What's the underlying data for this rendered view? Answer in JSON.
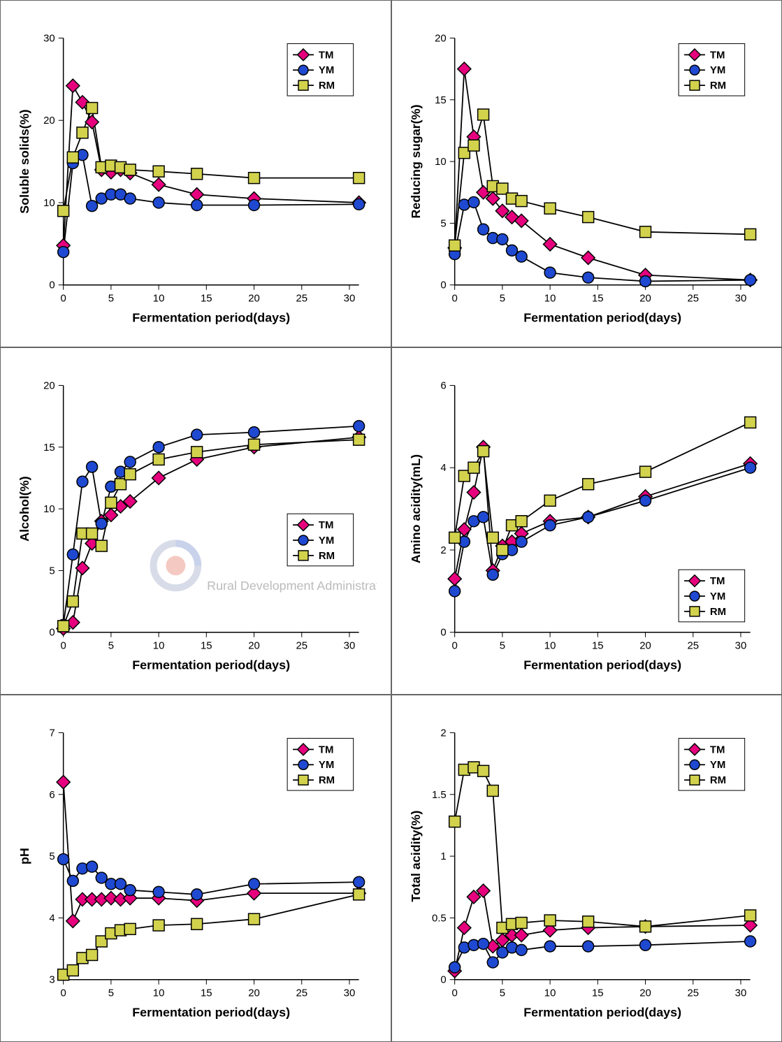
{
  "global": {
    "xlabel": "Fermentation period(days)",
    "series_names": [
      "TM",
      "YM",
      "RM"
    ],
    "legend_labels": {
      "tm": "TM",
      "ym": "YM",
      "rm": "RM"
    },
    "marker_size": 8,
    "line_width": 1.8,
    "axis_label_fontsize": 18,
    "tick_fontsize": 15,
    "markers": {
      "tm": {
        "shape": "diamond",
        "fill": "#e6007e",
        "stroke": "#000"
      },
      "ym": {
        "shape": "circle",
        "fill": "#1f49d1",
        "stroke": "#000"
      },
      "rm": {
        "shape": "square",
        "fill": "#d2d24d",
        "stroke": "#000"
      }
    },
    "legend_bg": "#ffffff",
    "legend_border": "#000000",
    "panel_border": "#666666",
    "background": "#ffffff",
    "watermark": {
      "text_en": "Rural Development Administration",
      "circle_outer": "#1f49d1",
      "circle_inner": "#e83f2b",
      "text_color": "#bbbbbb"
    }
  },
  "charts": [
    {
      "id": "soluble_solids",
      "type": "line",
      "ylabel": "Soluble solids(%)",
      "xlim": [
        0,
        31
      ],
      "xticks": [
        0,
        5,
        10,
        15,
        20,
        25,
        30
      ],
      "ylim": [
        0,
        30
      ],
      "yticks": [
        0,
        10,
        20,
        30
      ],
      "legend_pos": "top-right",
      "data": {
        "x": [
          0,
          1,
          2,
          3,
          4,
          5,
          6,
          7,
          10,
          14,
          20,
          31
        ],
        "tm": [
          4.8,
          24.2,
          22.2,
          19.8,
          14.0,
          13.7,
          14.0,
          13.6,
          12.2,
          11.0,
          10.5,
          10.0
        ],
        "ym": [
          4.0,
          14.8,
          15.8,
          9.6,
          10.5,
          11.0,
          11.0,
          10.5,
          10.0,
          9.7,
          9.7,
          9.8
        ],
        "rm": [
          9.0,
          15.5,
          18.5,
          21.5,
          14.3,
          14.5,
          14.3,
          14.0,
          13.8,
          13.5,
          13.0,
          13.0
        ]
      }
    },
    {
      "id": "reducing_sugar",
      "type": "line",
      "ylabel": "Reducing sugar(%)",
      "xlim": [
        0,
        31
      ],
      "xticks": [
        0,
        5,
        10,
        15,
        20,
        25,
        30
      ],
      "ylim": [
        0,
        20
      ],
      "yticks": [
        0,
        5,
        10,
        15,
        20
      ],
      "legend_pos": "top-right",
      "data": {
        "x": [
          0,
          1,
          2,
          3,
          4,
          5,
          6,
          7,
          10,
          14,
          20,
          31
        ],
        "tm": [
          3.0,
          17.5,
          12.0,
          7.5,
          7.0,
          6.0,
          5.5,
          5.2,
          3.3,
          2.2,
          0.8,
          0.4
        ],
        "ym": [
          2.5,
          6.5,
          6.7,
          4.5,
          3.8,
          3.7,
          2.8,
          2.3,
          1.0,
          0.6,
          0.3,
          0.4
        ],
        "rm": [
          3.2,
          10.7,
          11.3,
          13.8,
          8.0,
          7.8,
          7.0,
          6.8,
          6.2,
          5.5,
          4.3,
          4.1
        ]
      }
    },
    {
      "id": "alcohol",
      "type": "line",
      "ylabel": "Alcohol(%)",
      "xlim": [
        0,
        31
      ],
      "xticks": [
        0,
        5,
        10,
        15,
        20,
        25,
        30
      ],
      "ylim": [
        0,
        20
      ],
      "yticks": [
        0,
        5,
        10,
        15,
        20
      ],
      "legend_pos": "mid-right",
      "watermark": true,
      "data": {
        "x": [
          0,
          1,
          2,
          3,
          4,
          5,
          6,
          7,
          10,
          14,
          20,
          31
        ],
        "tm": [
          0.3,
          0.8,
          5.2,
          7.2,
          9.0,
          9.5,
          10.2,
          10.6,
          12.5,
          14.0,
          15.0,
          15.8
        ],
        "ym": [
          0.6,
          6.3,
          12.2,
          13.4,
          8.8,
          11.8,
          13.0,
          13.8,
          15.0,
          16.0,
          16.2,
          16.7
        ],
        "rm": [
          0.5,
          2.5,
          8.0,
          8.0,
          7.0,
          10.5,
          12.0,
          12.8,
          14.0,
          14.6,
          15.2,
          15.6
        ]
      }
    },
    {
      "id": "amino_acidity",
      "type": "line",
      "ylabel": "Amino acidity(mL)",
      "xlim": [
        0,
        31
      ],
      "xticks": [
        0,
        5,
        10,
        15,
        20,
        25,
        30
      ],
      "ylim": [
        0,
        6
      ],
      "yticks": [
        0,
        2,
        4,
        6
      ],
      "legend_pos": "bottom-right",
      "data": {
        "x": [
          0,
          1,
          2,
          3,
          4,
          5,
          6,
          7,
          10,
          14,
          20,
          31
        ],
        "tm": [
          1.3,
          2.5,
          3.4,
          4.5,
          1.5,
          2.1,
          2.2,
          2.4,
          2.7,
          2.8,
          3.3,
          4.1
        ],
        "ym": [
          1.0,
          2.2,
          2.7,
          2.8,
          1.4,
          1.9,
          2.0,
          2.2,
          2.6,
          2.8,
          3.2,
          4.0
        ],
        "rm": [
          2.3,
          3.8,
          4.0,
          4.4,
          2.3,
          2.0,
          2.6,
          2.7,
          3.2,
          3.6,
          3.9,
          5.1
        ]
      }
    },
    {
      "id": "ph",
      "type": "line",
      "ylabel": "pH",
      "xlim": [
        0,
        31
      ],
      "xticks": [
        0,
        5,
        10,
        15,
        20,
        25,
        30
      ],
      "ylim": [
        3,
        7
      ],
      "yticks": [
        3,
        4,
        5,
        6,
        7
      ],
      "legend_pos": "top-right",
      "data": {
        "x": [
          0,
          1,
          2,
          3,
          4,
          5,
          6,
          7,
          10,
          14,
          20,
          31
        ],
        "tm": [
          6.2,
          3.95,
          4.3,
          4.3,
          4.3,
          4.32,
          4.3,
          4.32,
          4.32,
          4.28,
          4.4,
          4.4
        ],
        "ym": [
          4.95,
          4.6,
          4.8,
          4.83,
          4.65,
          4.55,
          4.55,
          4.45,
          4.42,
          4.38,
          4.55,
          4.58
        ],
        "rm": [
          3.08,
          3.15,
          3.35,
          3.4,
          3.62,
          3.75,
          3.8,
          3.82,
          3.88,
          3.9,
          3.98,
          4.38
        ]
      }
    },
    {
      "id": "total_acidity",
      "type": "line",
      "ylabel": "Total acidity(%)",
      "xlim": [
        0,
        31
      ],
      "xticks": [
        0,
        5,
        10,
        15,
        20,
        25,
        30
      ],
      "ylim": [
        0,
        2.0
      ],
      "yticks": [
        0,
        0.5,
        1.0,
        1.5,
        2.0
      ],
      "legend_pos": "top-right",
      "data": {
        "x": [
          0,
          1,
          2,
          3,
          4,
          5,
          6,
          7,
          10,
          14,
          20,
          31
        ],
        "tm": [
          0.07,
          0.42,
          0.67,
          0.72,
          0.27,
          0.32,
          0.36,
          0.36,
          0.4,
          0.42,
          0.43,
          0.44
        ],
        "ym": [
          0.1,
          0.26,
          0.28,
          0.29,
          0.14,
          0.22,
          0.26,
          0.24,
          0.27,
          0.27,
          0.28,
          0.31
        ],
        "rm": [
          1.28,
          1.7,
          1.72,
          1.69,
          1.53,
          0.42,
          0.45,
          0.46,
          0.48,
          0.47,
          0.43,
          0.52
        ]
      }
    }
  ]
}
